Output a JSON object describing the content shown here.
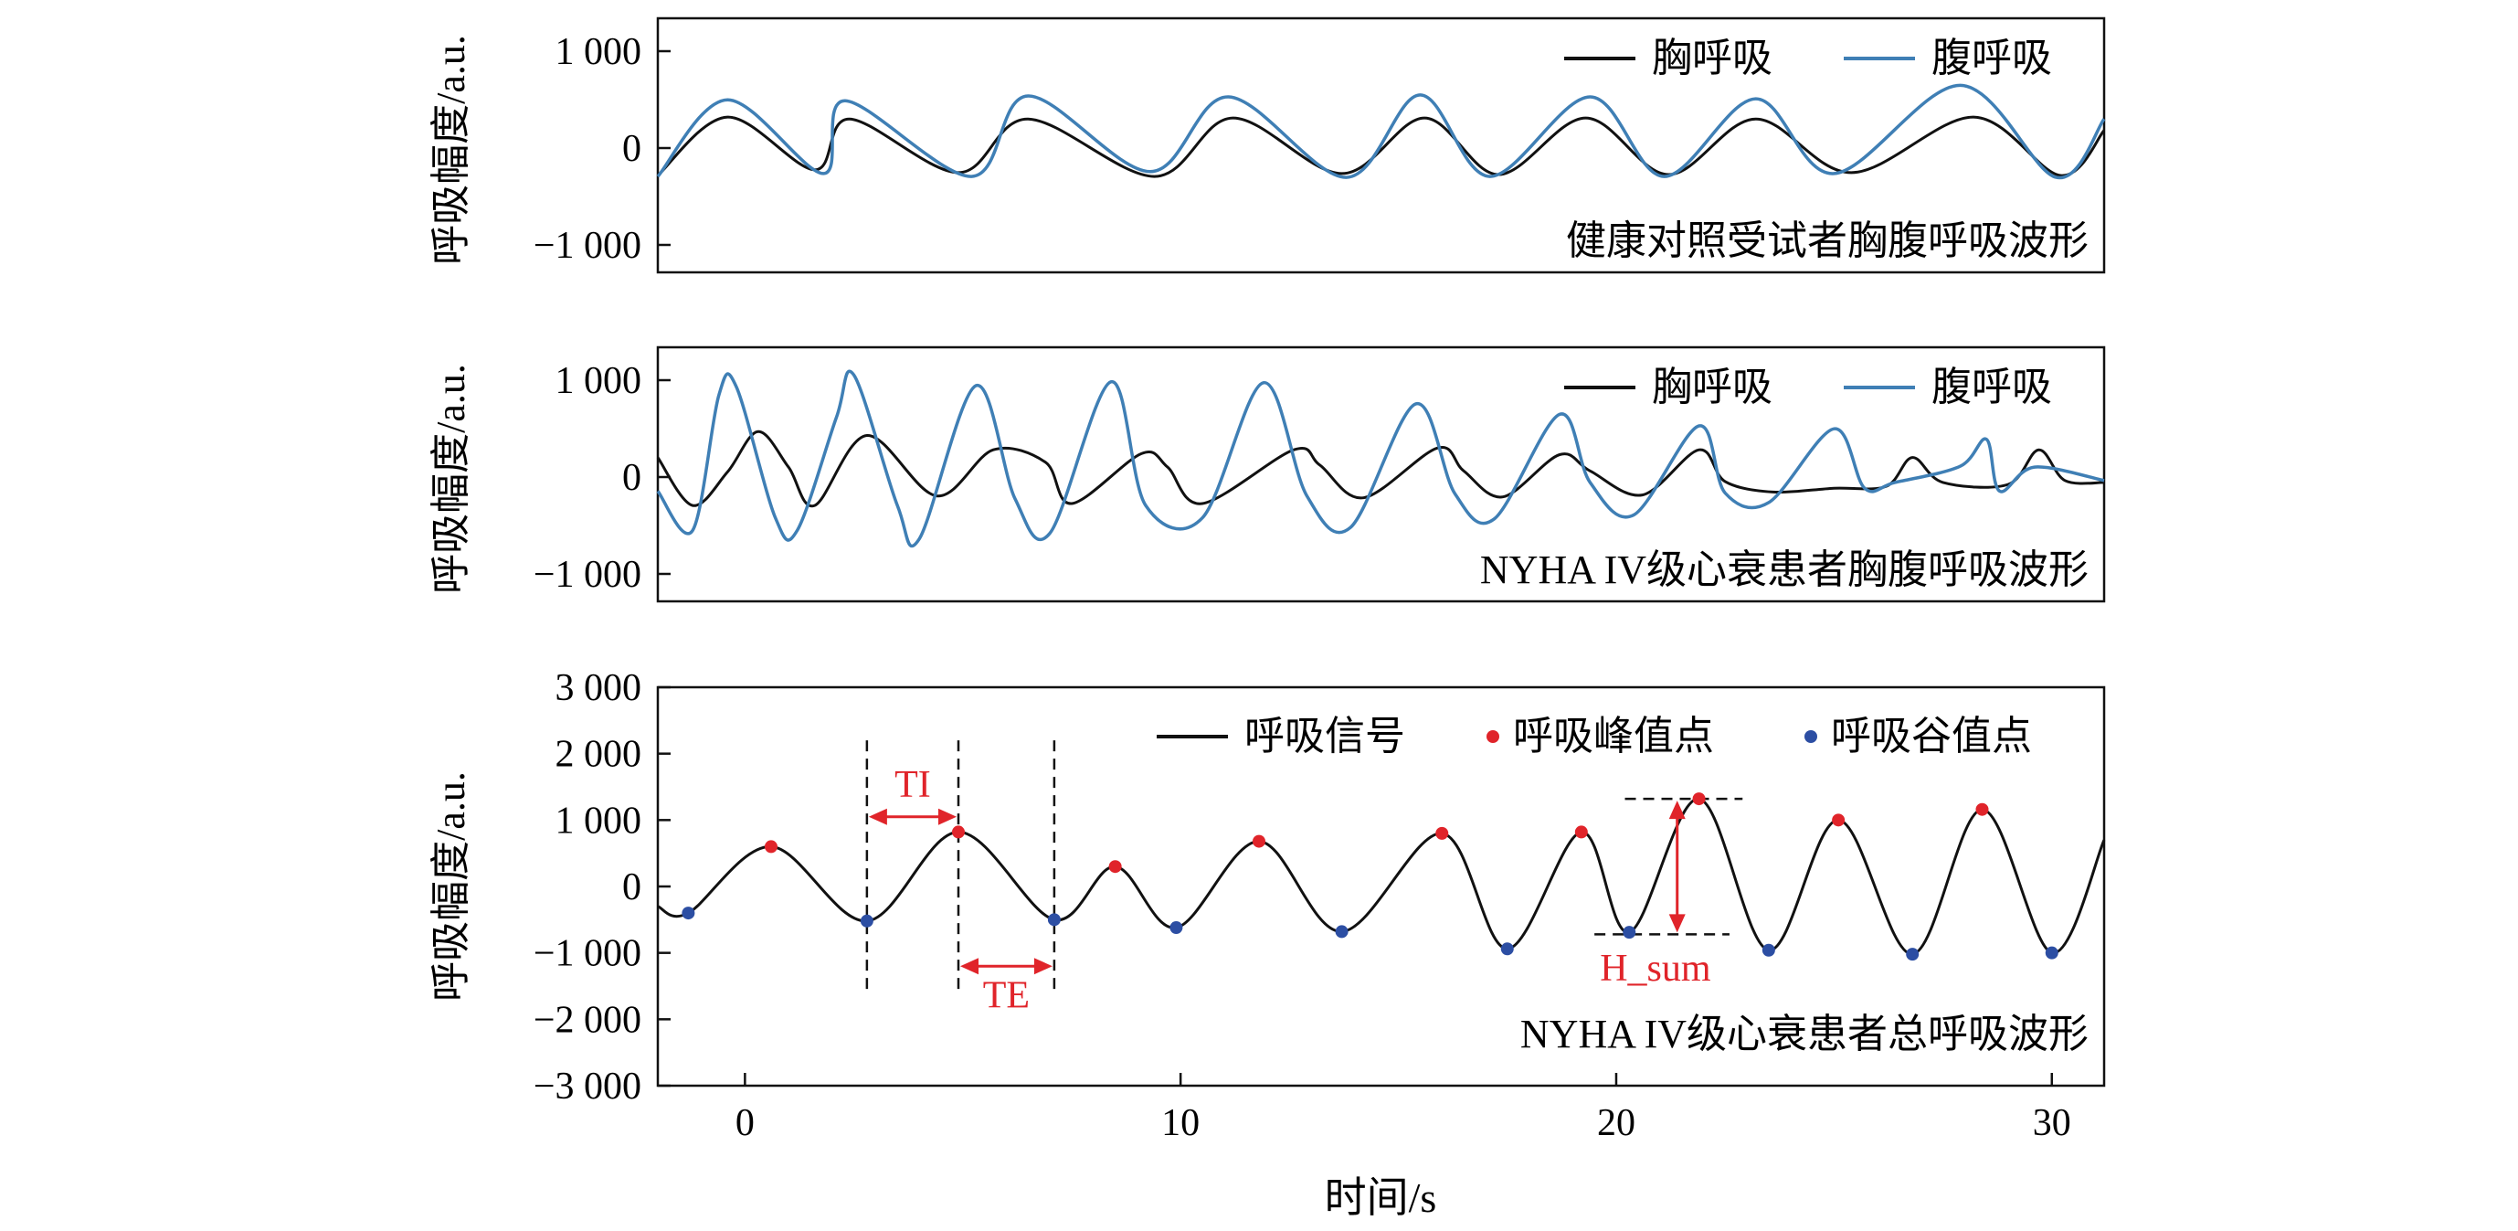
{
  "figure": {
    "xlabel": "时间/s",
    "x_ticks": [
      0,
      10,
      20,
      30
    ],
    "x_tick_labels": [
      "0",
      "10",
      "20",
      "30"
    ],
    "xlim": [
      -2,
      31.2
    ]
  },
  "chart_data": [
    {
      "type": "line",
      "ylabel": "呼吸幅度/a.u.",
      "annotation": "健康对照受试者胸腹呼吸波形",
      "ylim": [
        -1300,
        1350
      ],
      "y_ticks": [
        1000,
        0,
        -1000
      ],
      "y_tick_labels": [
        "1 000",
        "0",
        "−1 000"
      ],
      "legend_position": "top-right",
      "series": [
        {
          "name": "胸呼吸",
          "color": "#111111",
          "peaks": [
            [
              -0.4,
              320
            ],
            [
              2.4,
              300
            ],
            [
              6.5,
              300
            ],
            [
              11.2,
              310
            ],
            [
              15.6,
              310
            ],
            [
              19.3,
              310
            ],
            [
              23.2,
              300
            ],
            [
              28.2,
              320
            ]
          ],
          "troughs": [
            [
              -2.0,
              -290
            ],
            [
              1.6,
              -230
            ],
            [
              4.9,
              -260
            ],
            [
              9.4,
              -300
            ],
            [
              13.7,
              -270
            ],
            [
              17.3,
              -280
            ],
            [
              21.2,
              -280
            ],
            [
              25.4,
              -260
            ],
            [
              30.2,
              -290
            ]
          ],
          "end": [
            31.2,
            180
          ]
        },
        {
          "name": "腹呼吸",
          "color": "#3f7fb5",
          "peaks": [
            [
              -0.4,
              500
            ],
            [
              2.3,
              490
            ],
            [
              6.5,
              540
            ],
            [
              11.1,
              530
            ],
            [
              15.5,
              550
            ],
            [
              19.4,
              530
            ],
            [
              23.2,
              510
            ],
            [
              27.9,
              650
            ]
          ],
          "troughs": [
            [
              -2.0,
              -300
            ],
            [
              1.8,
              -270
            ],
            [
              5.2,
              -300
            ],
            [
              9.3,
              -250
            ],
            [
              13.8,
              -310
            ],
            [
              17.1,
              -300
            ],
            [
              21.1,
              -300
            ],
            [
              25.0,
              -270
            ],
            [
              30.1,
              -310
            ]
          ],
          "end": [
            31.2,
            300
          ]
        }
      ]
    },
    {
      "type": "line",
      "ylabel": "呼吸幅度/a.u.",
      "annotation": "NYHA IV级心衰患者胸腹呼吸波形",
      "ylim": [
        -1300,
        1350
      ],
      "y_ticks": [
        1000,
        0,
        -1000
      ],
      "y_tick_labels": [
        "1 000",
        "0",
        "−1 000"
      ],
      "legend_position": "top-right",
      "series": [
        {
          "name": "胸呼吸",
          "color": "#111111",
          "points": [
            [
              -2.0,
              200
            ],
            [
              -1.2,
              -300
            ],
            [
              -0.4,
              50
            ],
            [
              0.3,
              470
            ],
            [
              1.0,
              100
            ],
            [
              1.6,
              -300
            ],
            [
              2.8,
              430
            ],
            [
              4.4,
              -200
            ],
            [
              5.7,
              280
            ],
            [
              6.9,
              150
            ],
            [
              7.5,
              -280
            ],
            [
              9.1,
              240
            ],
            [
              9.7,
              100
            ],
            [
              10.5,
              -280
            ],
            [
              12.6,
              280
            ],
            [
              13.2,
              120
            ],
            [
              14.2,
              -220
            ],
            [
              15.9,
              300
            ],
            [
              16.5,
              60
            ],
            [
              17.4,
              -210
            ],
            [
              18.7,
              230
            ],
            [
              19.4,
              60
            ],
            [
              20.6,
              -190
            ],
            [
              21.9,
              280
            ],
            [
              22.5,
              -50
            ],
            [
              23.6,
              -160
            ],
            [
              25.0,
              -120
            ],
            [
              26.2,
              -100
            ],
            [
              26.8,
              200
            ],
            [
              27.5,
              -60
            ],
            [
              29.0,
              -80
            ],
            [
              29.7,
              280
            ],
            [
              30.3,
              -40
            ],
            [
              31.2,
              -60
            ]
          ]
        },
        {
          "name": "腹呼吸",
          "color": "#3f7fb5",
          "points": [
            [
              -2.0,
              -150
            ],
            [
              -1.2,
              -560
            ],
            [
              -0.6,
              850
            ],
            [
              -0.2,
              940
            ],
            [
              0.7,
              -430
            ],
            [
              1.2,
              -560
            ],
            [
              2.1,
              620
            ],
            [
              2.5,
              1060
            ],
            [
              3.5,
              -300
            ],
            [
              4.0,
              -650
            ],
            [
              5.3,
              950
            ],
            [
              6.2,
              -230
            ],
            [
              7.0,
              -590
            ],
            [
              8.4,
              990
            ],
            [
              9.2,
              -300
            ],
            [
              10.5,
              -430
            ],
            [
              11.9,
              980
            ],
            [
              12.9,
              -200
            ],
            [
              13.9,
              -530
            ],
            [
              15.4,
              760
            ],
            [
              16.3,
              -180
            ],
            [
              17.2,
              -440
            ],
            [
              18.7,
              650
            ],
            [
              19.4,
              -60
            ],
            [
              20.4,
              -400
            ],
            [
              21.9,
              530
            ],
            [
              22.5,
              -170
            ],
            [
              23.5,
              -270
            ],
            [
              25.0,
              500
            ],
            [
              25.7,
              -120
            ],
            [
              26.4,
              -60
            ],
            [
              27.9,
              110
            ],
            [
              28.5,
              390
            ],
            [
              28.8,
              -150
            ],
            [
              29.6,
              100
            ],
            [
              31.2,
              -40
            ]
          ]
        }
      ]
    },
    {
      "type": "line",
      "ylabel": "呼吸幅度/a.u.",
      "annotation": "NYHA IV级心衰患者总呼吸波形",
      "ylim": [
        -3000,
        3000
      ],
      "y_ticks": [
        3000,
        2000,
        1000,
        0,
        -1000,
        -2000,
        -3000
      ],
      "y_tick_labels": [
        "3 000",
        "2 000",
        "1 000",
        "0",
        "−1 000",
        "−2 000",
        "−3 000"
      ],
      "legend_position": "top-right",
      "series": [
        {
          "name": "呼吸信号",
          "color": "#111111",
          "start": [
            -2.0,
            -300
          ],
          "end": [
            31.2,
            700
          ]
        },
        {
          "name": "呼吸峰值点",
          "color": "#e0242a",
          "marker": "dot",
          "points": [
            [
              0.6,
              600
            ],
            [
              4.9,
              820
            ],
            [
              8.5,
              300
            ],
            [
              11.8,
              680
            ],
            [
              16.0,
              800
            ],
            [
              19.2,
              820
            ],
            [
              21.9,
              1320
            ],
            [
              25.1,
              1000
            ],
            [
              28.4,
              1160
            ]
          ]
        },
        {
          "name": "呼吸谷值点",
          "color": "#2c4ea3",
          "marker": "dot",
          "points": [
            [
              -1.3,
              -400
            ],
            [
              2.8,
              -520
            ],
            [
              7.1,
              -500
            ],
            [
              9.9,
              -620
            ],
            [
              13.7,
              -680
            ],
            [
              17.5,
              -940
            ],
            [
              20.3,
              -690
            ],
            [
              23.5,
              -960
            ],
            [
              26.8,
              -1020
            ],
            [
              30.0,
              -1000
            ]
          ]
        }
      ],
      "markers": [
        {
          "label": "TI",
          "from": 2.8,
          "to": 4.9,
          "color": "#e0242a"
        },
        {
          "label": "TE",
          "from": 4.9,
          "to": 7.1,
          "color": "#e0242a"
        },
        {
          "label": "H_sum",
          "x": 21.4,
          "from": -720,
          "to": 1320,
          "color": "#e0242a"
        }
      ]
    }
  ]
}
